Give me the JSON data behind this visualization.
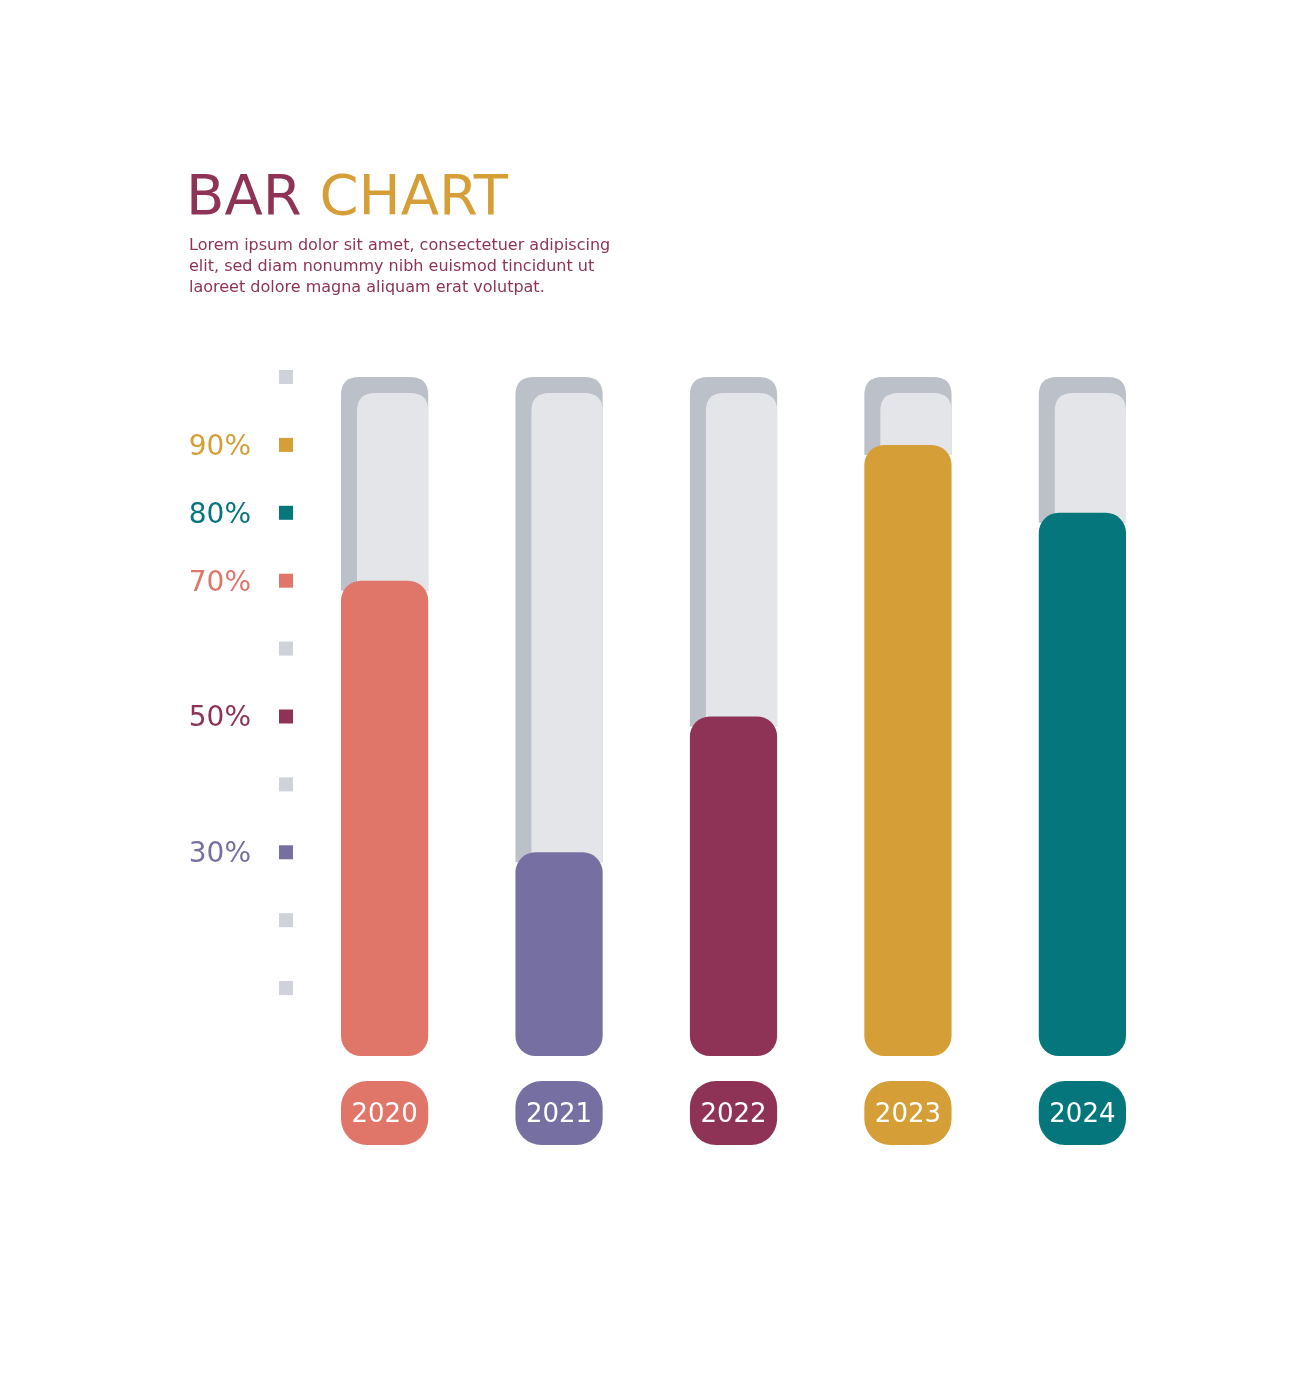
{
  "chart_data": {
    "type": "bar",
    "title": "BAR CHART",
    "subtitle": "Lorem ipsum dolor sit amet, consectetuer adipiscing elit, sed diam nonummy nibh euismod tincidunt ut laoreet dolore magna aliquam erat volutpat.",
    "categories": [
      "2020",
      "2021",
      "2022",
      "2023",
      "2024"
    ],
    "values": [
      70,
      30,
      50,
      90,
      80
    ],
    "colors": [
      "#e0756a",
      "#7670a2",
      "#8e3356",
      "#d59e37",
      "#05777c"
    ],
    "ylim": [
      0,
      100
    ],
    "yticks": [
      {
        "value": 10,
        "label": null
      },
      {
        "value": 20,
        "label": null
      },
      {
        "value": 30,
        "label": "30%"
      },
      {
        "value": 40,
        "label": null
      },
      {
        "value": 50,
        "label": "50%"
      },
      {
        "value": 60,
        "label": null
      },
      {
        "value": 70,
        "label": "70%"
      },
      {
        "value": 80,
        "label": "80%"
      },
      {
        "value": 90,
        "label": "90%"
      },
      {
        "value": 100,
        "label": null
      }
    ],
    "grid": false
  }
}
